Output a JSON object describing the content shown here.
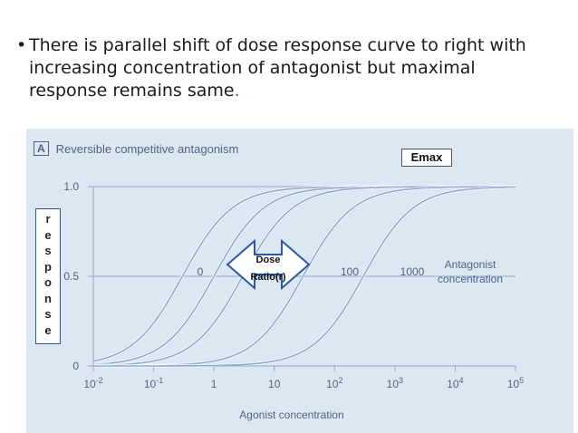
{
  "slide": {
    "bullet": "•",
    "text_main": "There is parallel shift of dose response curve to right with increasing concentration of antagonist but maximal response remains same",
    "text_period": ".",
    "line1": "There is parallel shift of dose response curve to right with",
    "line2": "increasing concentration of antagonist but maximal",
    "line3": "response remains same"
  },
  "figure": {
    "panel_letter": "A",
    "title": "Reversible competitive antagonism",
    "emax_label": "Emax",
    "response_letters": [
      "r",
      "e",
      "s",
      "p",
      "o",
      "n",
      "s",
      "e"
    ],
    "dose_ratio_label_1": "Dose",
    "dose_ratio_label_2": "Ratio(r)",
    "curve_labels": [
      "0",
      "100",
      "1000"
    ],
    "antagonist_label_1": "Antagonist",
    "antagonist_label_2": "concentration",
    "colors": {
      "background": "#dde7f2",
      "curve": "#8aa9cf",
      "text": "#4d6585",
      "arrow_fill": "#ffffff",
      "arrow_stroke": "#2a5aa0"
    }
  },
  "chart_data": {
    "type": "line",
    "title": "Reversible competitive antagonism",
    "xlabel": "Agonist concentration",
    "ylabel": "",
    "x_scale": "log",
    "xlim": [
      0.01,
      100000
    ],
    "ylim": [
      0,
      1.0
    ],
    "x_ticks": [
      "10-2",
      "10-1",
      "1",
      "10",
      "102",
      "103",
      "104",
      "105"
    ],
    "y_ticks": [
      "0",
      "0.5",
      "1.0"
    ],
    "series": [
      {
        "name": "0",
        "ec50": 0.3
      },
      {
        "name": "",
        "ec50": 1
      },
      {
        "name": "",
        "ec50": 3
      },
      {
        "name": "100",
        "ec50": 30
      },
      {
        "name": "1000",
        "ec50": 300
      }
    ],
    "legend_text": "Antagonist concentration",
    "grid": true
  }
}
